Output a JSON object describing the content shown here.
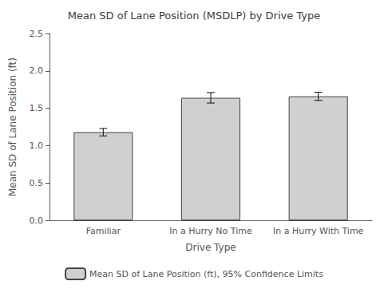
{
  "chart_data": {
    "type": "bar",
    "title": "Mean SD of Lane Position (MSDLP) by Drive Type",
    "xlabel": "Drive Type",
    "ylabel": "Mean SD of Lane Position (ft)",
    "categories": [
      "Familiar",
      "In a Hurry No Time",
      "In a Hurry With Time"
    ],
    "series": [
      {
        "name": "Mean SD of Lane Position (ft), 95% Confidence Limits",
        "color": "#d0d0d0",
        "values": [
          1.18,
          1.64,
          1.66
        ],
        "errors": [
          0.05,
          0.07,
          0.055
        ]
      }
    ],
    "ylim": [
      0.0,
      2.5
    ],
    "yticks": [
      {
        "value": 0.0,
        "label": "0.0"
      },
      0.5,
      {
        "value": 1.0,
        "label": "1.0"
      },
      1.5,
      {
        "value": 2.0,
        "label": "2.0"
      },
      2.5
    ],
    "grid": false,
    "legend": "bottom"
  }
}
